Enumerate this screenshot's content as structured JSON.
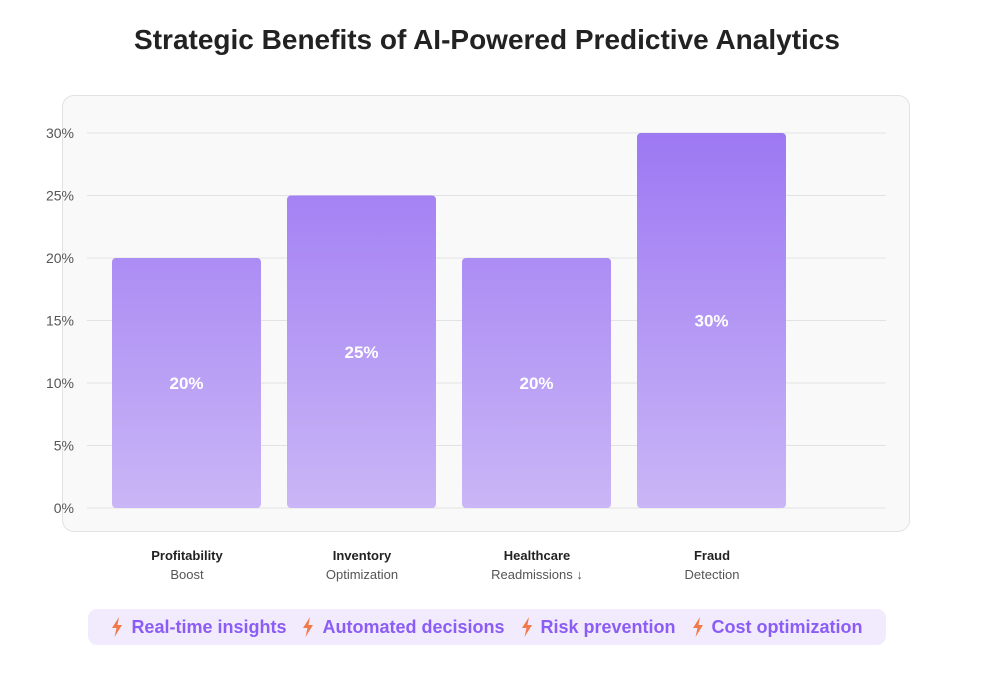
{
  "title": "Strategic Benefits of AI-Powered Predictive Analytics",
  "chart_data": {
    "type": "bar",
    "categories": [
      "Profitability Boost",
      "Inventory Optimization",
      "Healthcare Readmissions ↓",
      "Fraud Detection"
    ],
    "category_lines": [
      [
        "Profitability",
        "Boost"
      ],
      [
        "Inventory",
        "Optimization"
      ],
      [
        "Healthcare",
        "Readmissions ↓"
      ],
      [
        "Fraud",
        "Detection"
      ]
    ],
    "values": [
      20,
      25,
      20,
      30
    ],
    "data_labels": [
      "20%",
      "25%",
      "20%",
      "30%"
    ],
    "ylim": [
      0,
      30
    ],
    "yticks": [
      0,
      5,
      10,
      15,
      20,
      25,
      30
    ],
    "ytick_labels": [
      "0%",
      "5%",
      "10%",
      "15%",
      "20%",
      "25%",
      "30%"
    ],
    "grid": true,
    "bar_color_top": "#9d78f3",
    "bar_color_bottom": "#cab6f6"
  },
  "benefits": [
    {
      "icon": "lightning-icon",
      "label": "Real-time insights"
    },
    {
      "icon": "lightning-icon",
      "label": "Automated decisions"
    },
    {
      "icon": "lightning-icon",
      "label": "Risk prevention"
    },
    {
      "icon": "lightning-icon",
      "label": "Cost optimization"
    }
  ],
  "colors": {
    "accent": "#8b5cf6",
    "icon": "#f07a4a",
    "benefit_bg": "#f1ebfd",
    "grid": "#e2e2e2"
  }
}
